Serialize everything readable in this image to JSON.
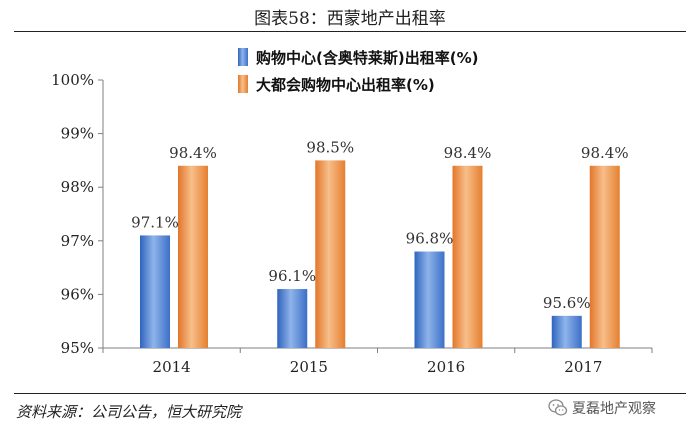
{
  "title": "图表58：西蒙地产出租率",
  "source": "资料来源：公司公告，恒大研究院",
  "watermark": {
    "text": "夏磊地产观察",
    "icon": "wechat-icon"
  },
  "colors": {
    "series_blue": "#4a7fd0",
    "series_blue_light": "#8fb4ea",
    "series_orange": "#ea8a3c",
    "series_orange_light": "#f7bf8a",
    "axis": "#7f7f7f"
  },
  "chart_data": {
    "type": "bar",
    "categories": [
      "2014",
      "2015",
      "2016",
      "2017"
    ],
    "series": [
      {
        "name": "购物中心(含奥特莱斯)出租率(%)",
        "values": [
          97.1,
          96.1,
          96.8,
          95.6
        ],
        "labels": [
          "97.1%",
          "96.1%",
          "96.8%",
          "95.6%"
        ]
      },
      {
        "name": "大都会购物中心出租率(%)",
        "values": [
          98.4,
          98.5,
          98.4,
          98.4
        ],
        "labels": [
          "98.4%",
          "98.5%",
          "98.4%",
          "98.4%"
        ]
      }
    ],
    "ylim": [
      95,
      100
    ],
    "yticks": [
      95,
      96,
      97,
      98,
      99,
      100
    ],
    "ytick_labels": [
      "95%",
      "96%",
      "97%",
      "98%",
      "99%",
      "100%"
    ],
    "legend": "top-center",
    "grid": false
  }
}
